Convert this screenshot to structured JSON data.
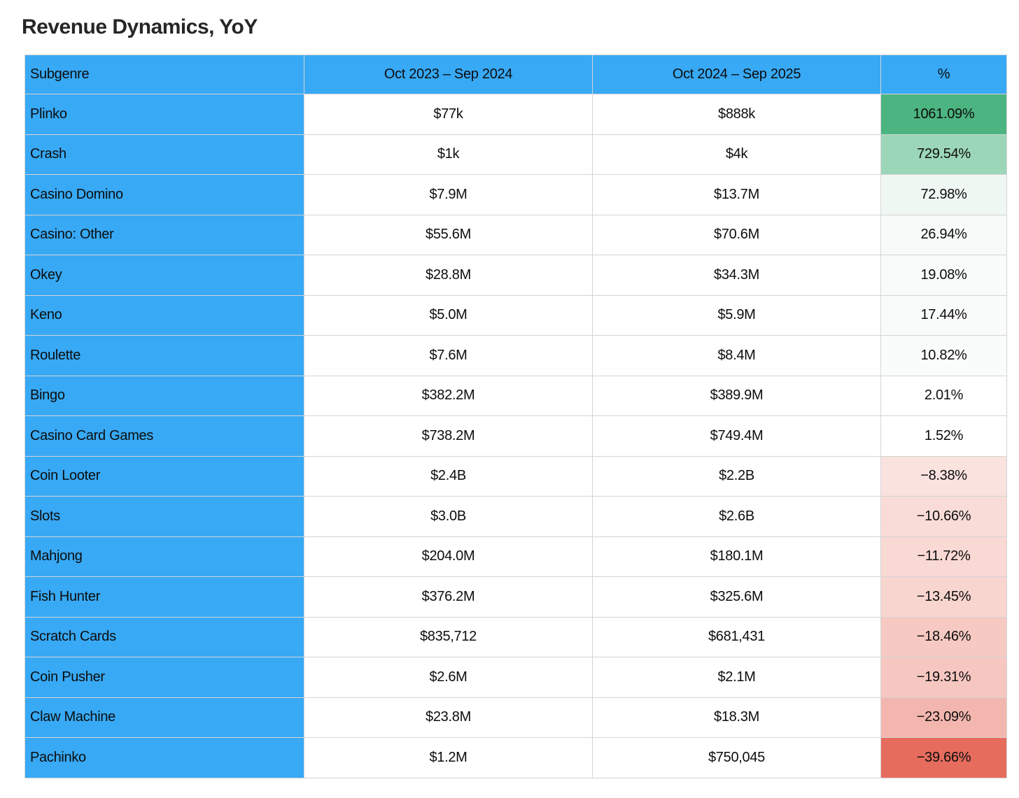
{
  "page": {
    "title": "Revenue Dynamics, YoY"
  },
  "colors": {
    "header_bg": "#38a9f5",
    "row_label_bg": "#38a9f5",
    "border": "#d4d4d4",
    "text": "#0d0d0d",
    "title": "#262626",
    "positive_strong": "#4cb480",
    "negative_strong": "#e66c5e"
  },
  "chart_data": {
    "type": "table",
    "title": "Revenue Dynamics, YoY",
    "columns": [
      "Subgenre",
      "Oct 2023 – Sep 2024",
      "Oct 2024 – Sep 2025",
      "%"
    ],
    "rows": [
      {
        "subgenre": "Plinko",
        "period1": "$77k",
        "period2": "$888k",
        "pct": "1061.09%",
        "pct_bg": "#4cb480"
      },
      {
        "subgenre": "Crash",
        "period1": "$1k",
        "period2": "$4k",
        "pct": "729.54%",
        "pct_bg": "#9cd6b8"
      },
      {
        "subgenre": "Casino Domino",
        "period1": "$7.9M",
        "period2": "$13.7M",
        "pct": "72.98%",
        "pct_bg": "#eff7f3"
      },
      {
        "subgenre": "Casino: Other",
        "period1": "$55.6M",
        "period2": "$70.6M",
        "pct": "26.94%",
        "pct_bg": "#f6faf8"
      },
      {
        "subgenre": "Okey",
        "period1": "$28.8M",
        "period2": "$34.3M",
        "pct": "19.08%",
        "pct_bg": "#f7fbf9"
      },
      {
        "subgenre": "Keno",
        "period1": "$5.0M",
        "period2": "$5.9M",
        "pct": "17.44%",
        "pct_bg": "#f8fbf9"
      },
      {
        "subgenre": "Roulette",
        "period1": "$7.6M",
        "period2": "$8.4M",
        "pct": "10.82%",
        "pct_bg": "#fafcfb"
      },
      {
        "subgenre": "Bingo",
        "period1": "$382.2M",
        "period2": "$389.9M",
        "pct": "2.01%",
        "pct_bg": "#fefffe"
      },
      {
        "subgenre": "Casino Card Games",
        "period1": "$738.2M",
        "period2": "$749.4M",
        "pct": "1.52%",
        "pct_bg": "#ffffff"
      },
      {
        "subgenre": "Coin Looter",
        "period1": "$2.4B",
        "period2": "$2.2B",
        "pct": "−8.38%",
        "pct_bg": "#fae2df"
      },
      {
        "subgenre": "Slots",
        "period1": "$3.0B",
        "period2": "$2.6B",
        "pct": "−10.66%",
        "pct_bg": "#f9dcd7"
      },
      {
        "subgenre": "Mahjong",
        "period1": "$204.0M",
        "period2": "$180.1M",
        "pct": "−11.72%",
        "pct_bg": "#f9d9d4"
      },
      {
        "subgenre": "Fish Hunter",
        "period1": "$376.2M",
        "period2": "$325.6M",
        "pct": "−13.45%",
        "pct_bg": "#f8d5cf"
      },
      {
        "subgenre": "Scratch Cards",
        "period1": "$835,712",
        "period2": "$681,431",
        "pct": "−18.46%",
        "pct_bg": "#f6c9c2"
      },
      {
        "subgenre": "Coin Pusher",
        "period1": "$2.6M",
        "period2": "$2.1M",
        "pct": "−19.31%",
        "pct_bg": "#f6c7c0"
      },
      {
        "subgenre": "Claw Machine",
        "period1": "$23.8M",
        "period2": "$18.3M",
        "pct": "−23.09%",
        "pct_bg": "#f3b6ae"
      },
      {
        "subgenre": "Pachinko",
        "period1": "$1.2M",
        "period2": "$750,045",
        "pct": "−39.66%",
        "pct_bg": "#e66c5e"
      }
    ]
  }
}
